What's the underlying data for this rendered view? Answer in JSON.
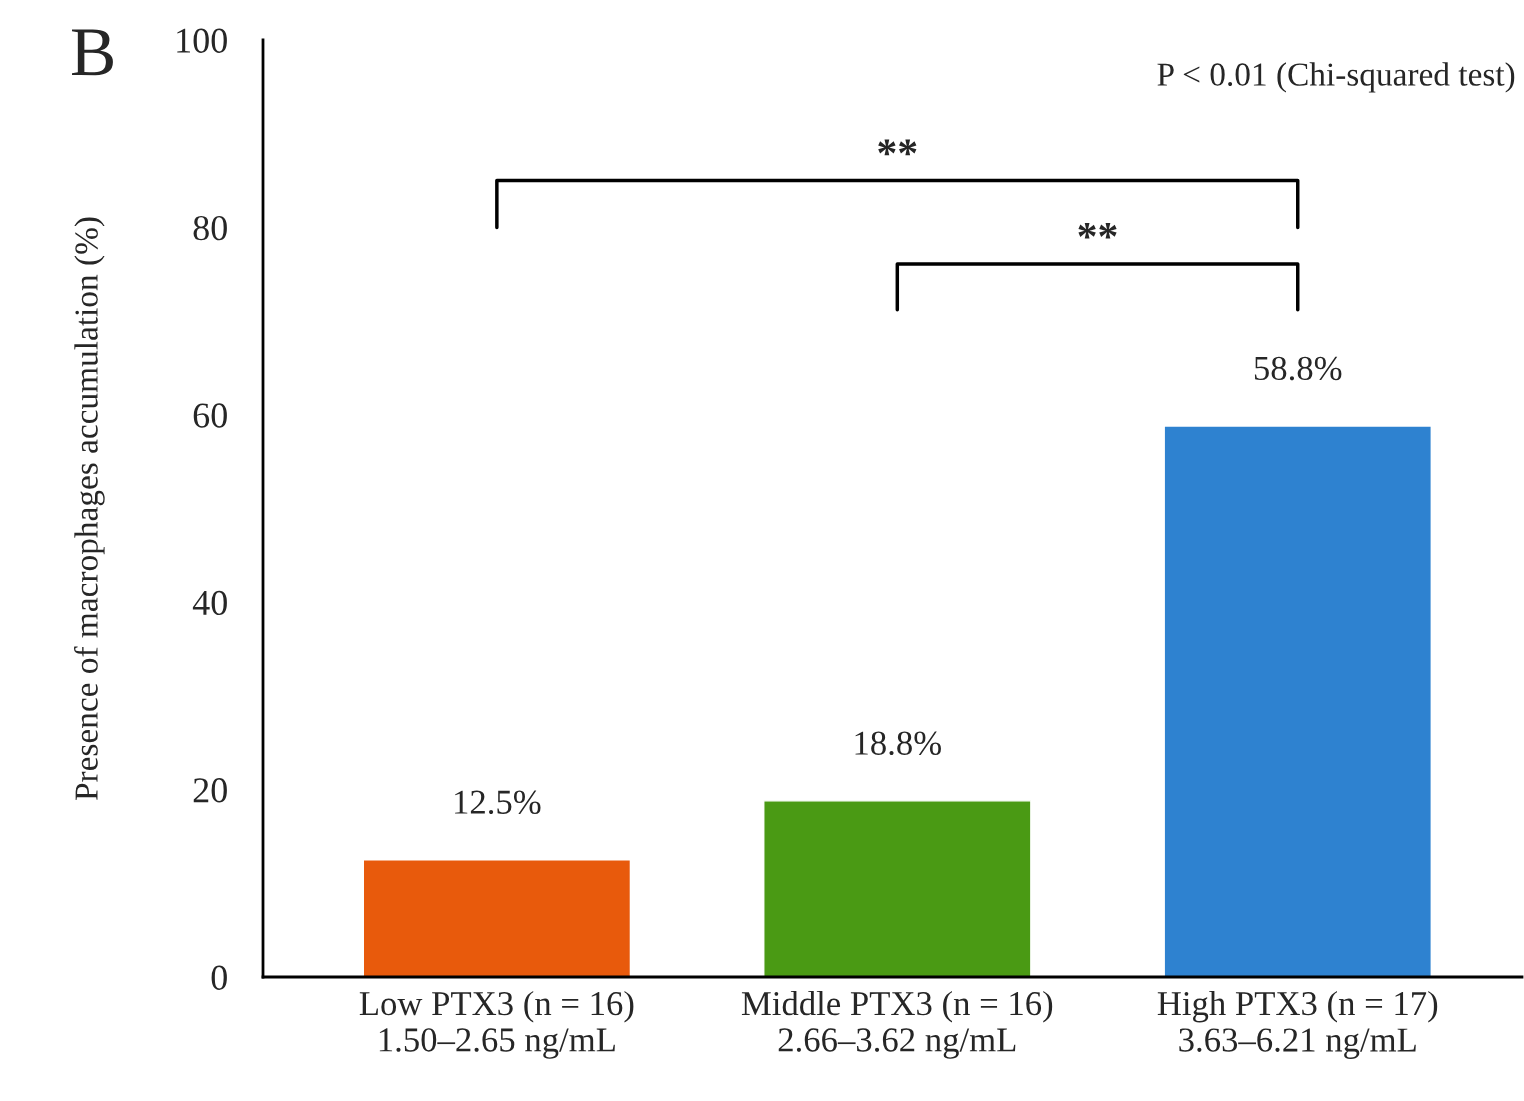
{
  "chart_data": {
    "type": "bar",
    "ylabel": "Presence of macrophages accumulation (%)",
    "categories": [
      "Low PTX3 (n = 16)\n1.50–2.65 ng/mL",
      "Middle PTX3 (n = 16)\n2.66–3.62 ng/mL",
      "High PTX3 (n = 17)\n3.63–6.21 ng/mL"
    ],
    "values": [
      12.5,
      18.8,
      58.8
    ],
    "colors": [
      "#e85a0c",
      "#4a9a14",
      "#2e82d0"
    ],
    "value_labels": [
      "12.5%",
      "18.8%",
      "58.8%"
    ],
    "ylim": [
      0,
      100
    ],
    "yticks": [
      0,
      20,
      40,
      60,
      80,
      100
    ],
    "grid": false,
    "legend": false,
    "annotations": [
      "B",
      "P < 0.01 (Chi-squared test)",
      "**",
      "**"
    ]
  }
}
